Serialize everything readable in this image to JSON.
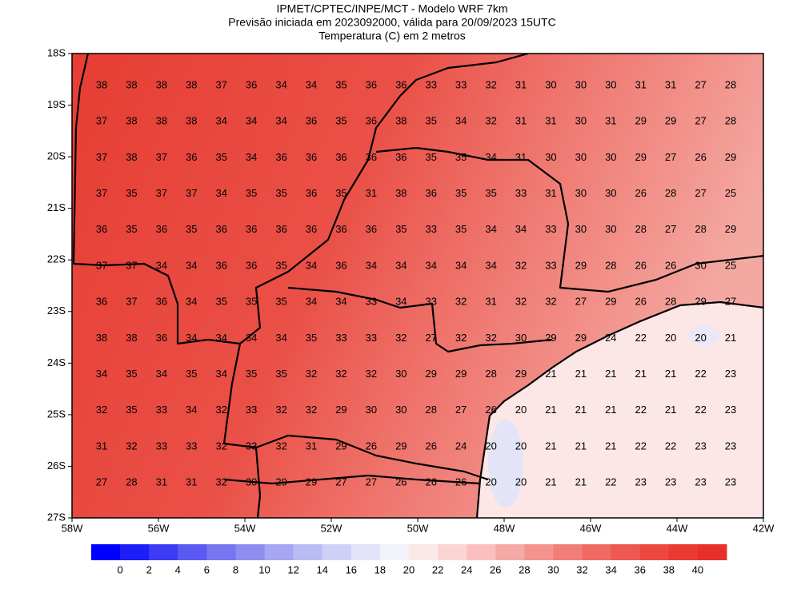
{
  "header": {
    "lines": [
      "IPMET/CPTEC/INPE/MCT - Modelo WRF 7km",
      "Previsão iniciada em 2023092000, válida para 20/09/2023 15UTC",
      "Temperatura (C) em 2 metros"
    ]
  },
  "map": {
    "lon_ticks": [
      {
        "value": -58,
        "label": "58W"
      },
      {
        "value": -56,
        "label": "56W"
      },
      {
        "value": -54,
        "label": "54W"
      },
      {
        "value": -52,
        "label": "52W"
      },
      {
        "value": -50,
        "label": "50W"
      },
      {
        "value": -48,
        "label": "48W"
      },
      {
        "value": -46,
        "label": "46W"
      },
      {
        "value": -44,
        "label": "44W"
      },
      {
        "value": -42,
        "label": "42W"
      }
    ],
    "lat_ticks": [
      {
        "value": -18,
        "label": "18S"
      },
      {
        "value": -19,
        "label": "19S"
      },
      {
        "value": -20,
        "label": "20S"
      },
      {
        "value": -21,
        "label": "21S"
      },
      {
        "value": -22,
        "label": "22S"
      },
      {
        "value": -23,
        "label": "23S"
      },
      {
        "value": -24,
        "label": "24S"
      },
      {
        "value": -25,
        "label": "25S"
      },
      {
        "value": -26,
        "label": "26S"
      },
      {
        "value": -27,
        "label": "27S"
      }
    ]
  },
  "grid": {
    "rows": [
      [
        38,
        38,
        38,
        38,
        37,
        36,
        34,
        34,
        35,
        36,
        36,
        33,
        33,
        32,
        31,
        30,
        30,
        30,
        31,
        31,
        27,
        28
      ],
      [
        37,
        38,
        38,
        38,
        34,
        34,
        34,
        36,
        35,
        36,
        38,
        35,
        34,
        32,
        31,
        31,
        30,
        31,
        29,
        29,
        27,
        28
      ],
      [
        37,
        38,
        37,
        36,
        35,
        34,
        36,
        36,
        36,
        36,
        36,
        35,
        35,
        34,
        31,
        30,
        30,
        30,
        29,
        27,
        26,
        29
      ],
      [
        37,
        35,
        37,
        37,
        34,
        35,
        35,
        36,
        35,
        31,
        38,
        36,
        35,
        35,
        33,
        31,
        30,
        30,
        26,
        28,
        27,
        25
      ],
      [
        36,
        35,
        36,
        35,
        36,
        36,
        36,
        36,
        36,
        36,
        35,
        33,
        35,
        34,
        34,
        33,
        30,
        30,
        28,
        27,
        28,
        29
      ],
      [
        37,
        37,
        34,
        34,
        36,
        36,
        35,
        34,
        36,
        34,
        34,
        34,
        34,
        34,
        32,
        33,
        29,
        28,
        26,
        26,
        30,
        25
      ],
      [
        36,
        37,
        36,
        34,
        35,
        35,
        35,
        34,
        34,
        33,
        34,
        33,
        32,
        31,
        32,
        32,
        27,
        29,
        26,
        28,
        29,
        27
      ],
      [
        38,
        38,
        36,
        34,
        34,
        34,
        34,
        35,
        33,
        33,
        32,
        27,
        32,
        32,
        30,
        29,
        29,
        24,
        22,
        20,
        20,
        21
      ],
      [
        34,
        35,
        34,
        35,
        34,
        35,
        35,
        32,
        32,
        32,
        30,
        29,
        29,
        28,
        29,
        21,
        21,
        21,
        21,
        21,
        22,
        23
      ],
      [
        32,
        35,
        33,
        34,
        32,
        33,
        32,
        32,
        29,
        30,
        30,
        28,
        27,
        26,
        20,
        21,
        21,
        21,
        22,
        21,
        22,
        23
      ],
      [
        31,
        32,
        33,
        33,
        32,
        33,
        32,
        31,
        29,
        26,
        29,
        26,
        24,
        20,
        20,
        21,
        21,
        21,
        22,
        22,
        23,
        23
      ],
      [
        27,
        28,
        31,
        31,
        32,
        30,
        29,
        29,
        27,
        27,
        26,
        26,
        26,
        20,
        20,
        21,
        21,
        22,
        23,
        23,
        23,
        23
      ]
    ]
  },
  "colorbar": {
    "labels": [
      0,
      2,
      4,
      6,
      8,
      10,
      12,
      14,
      16,
      18,
      20,
      22,
      24,
      26,
      28,
      30,
      32,
      34,
      36,
      38,
      40
    ],
    "colors": [
      "#0000ff",
      "#1e1ef8",
      "#3c3cf4",
      "#5a5af2",
      "#7676f0",
      "#8e8ef0",
      "#a6a6f2",
      "#bcbcf4",
      "#d0d0f6",
      "#e2e2f8",
      "#f2f2fa",
      "#fde8e8",
      "#fbd4d4",
      "#f9c0be",
      "#f6aaa6",
      "#f4948e",
      "#f27e78",
      "#f06a62",
      "#ee5850",
      "#ec4840",
      "#ea3a32",
      "#e8302a"
    ]
  }
}
